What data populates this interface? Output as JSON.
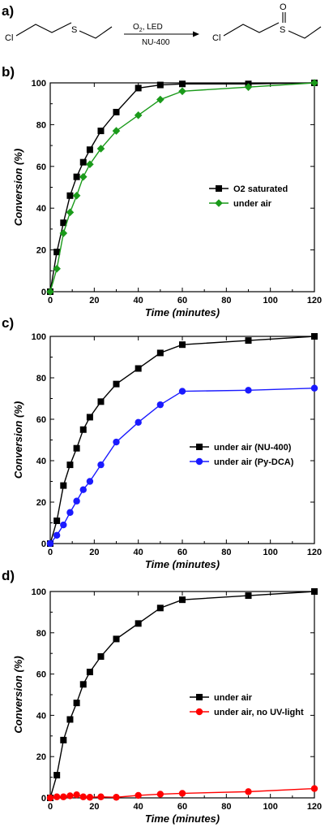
{
  "scheme": {
    "panel_label": "a)",
    "reactant_cl": "Cl",
    "reactant_s": "S",
    "product_cl": "Cl",
    "product_s": "S",
    "product_o": "O",
    "conditions_top_o": "O",
    "conditions_top_sub": "2",
    "conditions_top_rest": ", LED",
    "conditions_bottom": "NU-400"
  },
  "chart_data": [
    {
      "panel_label": "b)",
      "type": "line",
      "xlabel": "Time (minutes)",
      "ylabel": "Conversion (%)",
      "xlim": [
        0,
        120
      ],
      "ylim": [
        0,
        100
      ],
      "xticks": [
        0,
        20,
        40,
        60,
        80,
        100,
        120
      ],
      "yticks": [
        0,
        20,
        40,
        60,
        80,
        100
      ],
      "legend_position": "center-right",
      "series": [
        {
          "name": "O2 saturated",
          "color": "#000000",
          "marker": "square",
          "x": [
            0,
            3,
            6,
            9,
            12,
            15,
            18,
            23,
            30,
            40,
            50,
            60,
            90,
            120
          ],
          "y": [
            0,
            19,
            33,
            46,
            55,
            62,
            68,
            77,
            86,
            97.5,
            99,
            99.5,
            99.5,
            100
          ]
        },
        {
          "name": "under air",
          "color": "#1a9a1a",
          "marker": "diamond",
          "x": [
            0,
            3,
            6,
            9,
            12,
            15,
            18,
            23,
            30,
            40,
            50,
            60,
            90,
            120
          ],
          "y": [
            0,
            11,
            28,
            38,
            46,
            55,
            61,
            68.5,
            77,
            84.5,
            92,
            96,
            98,
            100
          ]
        }
      ]
    },
    {
      "panel_label": "c)",
      "type": "line",
      "xlabel": "Time (minutes)",
      "ylabel": "Conversion (%)",
      "xlim": [
        0,
        120
      ],
      "ylim": [
        0,
        100
      ],
      "xticks": [
        0,
        20,
        40,
        60,
        80,
        100,
        120
      ],
      "yticks": [
        0,
        20,
        40,
        60,
        80,
        100
      ],
      "legend_position": "center-right",
      "series": [
        {
          "name": "under air (NU-400)",
          "color": "#000000",
          "marker": "square",
          "x": [
            0,
            3,
            6,
            9,
            12,
            15,
            18,
            23,
            30,
            40,
            50,
            60,
            90,
            120
          ],
          "y": [
            0,
            11,
            28,
            38,
            46,
            55,
            61,
            68.5,
            77,
            84.5,
            92,
            96,
            98,
            100
          ]
        },
        {
          "name": "under air (Py-DCA)",
          "color": "#1a1aff",
          "marker": "circle",
          "x": [
            0,
            3,
            6,
            9,
            12,
            15,
            18,
            23,
            30,
            40,
            50,
            60,
            90,
            120
          ],
          "y": [
            0,
            4,
            9,
            15,
            20.5,
            26,
            30,
            38,
            49,
            58.5,
            67,
            73.5,
            74,
            75
          ]
        }
      ]
    },
    {
      "panel_label": "d)",
      "type": "line",
      "xlabel": "Time (minutes)",
      "ylabel": "Conversion (%)",
      "xlim": [
        0,
        120
      ],
      "ylim": [
        0,
        100
      ],
      "xticks": [
        0,
        20,
        40,
        60,
        80,
        100,
        120
      ],
      "yticks": [
        0,
        20,
        40,
        60,
        80,
        100
      ],
      "legend_position": "center-right",
      "series": [
        {
          "name": "under air",
          "color": "#000000",
          "marker": "square",
          "x": [
            0,
            3,
            6,
            9,
            12,
            15,
            18,
            23,
            30,
            40,
            50,
            60,
            90,
            120
          ],
          "y": [
            0,
            11,
            28,
            38,
            46,
            55,
            61,
            68.5,
            77,
            84.5,
            92,
            96,
            98,
            100
          ]
        },
        {
          "name": "under air, no UV-light",
          "color": "#ff0000",
          "marker": "circle",
          "x": [
            0,
            3,
            6,
            9,
            12,
            15,
            18,
            23,
            30,
            40,
            50,
            60,
            90,
            120
          ],
          "y": [
            0,
            0.5,
            0.5,
            1,
            1.5,
            0.5,
            0.3,
            0.5,
            0.3,
            1.2,
            1.8,
            2.2,
            3,
            4.5
          ]
        }
      ]
    }
  ]
}
